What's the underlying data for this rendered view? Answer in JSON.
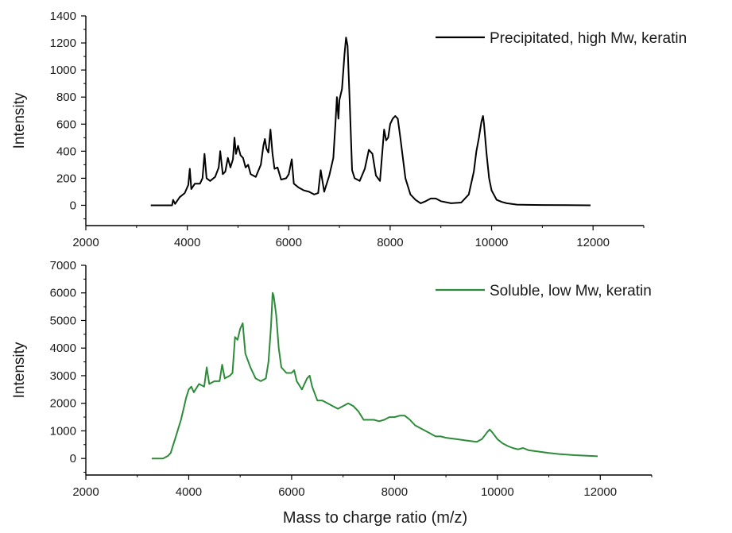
{
  "chart_data": [
    {
      "type": "line",
      "xlabel": "",
      "ylabel": "Intensity",
      "xlim": [
        2000,
        13000
      ],
      "ylim": [
        -150,
        1400
      ],
      "x_ticks": [
        2000,
        4000,
        6000,
        8000,
        10000,
        12000
      ],
      "y_ticks": [
        0,
        200,
        400,
        600,
        800,
        1000,
        1200,
        1400
      ],
      "legend_position": "top-right",
      "series": [
        {
          "name": "Precipitated, high Mw, keratin",
          "color": "#000000",
          "x": [
            3280,
            3700,
            3720,
            3760,
            3850,
            3950,
            4020,
            4050,
            4080,
            4150,
            4250,
            4300,
            4340,
            4380,
            4450,
            4550,
            4620,
            4650,
            4700,
            4750,
            4800,
            4850,
            4900,
            4930,
            4960,
            5000,
            5050,
            5100,
            5150,
            5200,
            5250,
            5350,
            5450,
            5500,
            5530,
            5560,
            5600,
            5640,
            5680,
            5720,
            5780,
            5850,
            5950,
            6000,
            6060,
            6100,
            6200,
            6300,
            6400,
            6500,
            6580,
            6630,
            6700,
            6800,
            6880,
            6920,
            6950,
            6980,
            7000,
            7050,
            7100,
            7130,
            7160,
            7200,
            7250,
            7300,
            7400,
            7500,
            7580,
            7650,
            7720,
            7800,
            7880,
            7920,
            7960,
            8000,
            8050,
            8100,
            8150,
            8200,
            8300,
            8400,
            8500,
            8600,
            8700,
            8800,
            8900,
            9000,
            9200,
            9400,
            9550,
            9650,
            9700,
            9750,
            9800,
            9830,
            9850,
            9900,
            9950,
            10000,
            10100,
            10200,
            10300,
            10400,
            10500,
            10700,
            11000,
            11500,
            11950
          ],
          "y": [
            0,
            0,
            40,
            10,
            60,
            90,
            150,
            270,
            120,
            160,
            160,
            200,
            380,
            200,
            180,
            210,
            280,
            400,
            230,
            250,
            350,
            280,
            340,
            500,
            380,
            440,
            370,
            350,
            280,
            300,
            230,
            210,
            300,
            440,
            490,
            420,
            390,
            560,
            380,
            270,
            280,
            190,
            200,
            230,
            340,
            160,
            130,
            110,
            100,
            80,
            90,
            260,
            100,
            220,
            350,
            600,
            800,
            640,
            780,
            860,
            1120,
            1240,
            1180,
            780,
            260,
            200,
            180,
            270,
            410,
            380,
            220,
            180,
            560,
            480,
            500,
            600,
            640,
            660,
            640,
            500,
            200,
            80,
            40,
            15,
            30,
            50,
            50,
            30,
            15,
            20,
            80,
            250,
            400,
            500,
            620,
            660,
            600,
            380,
            200,
            110,
            40,
            25,
            15,
            10,
            5,
            3,
            2,
            1,
            0
          ]
        }
      ]
    },
    {
      "type": "line",
      "xlabel": "Mass to charge ratio (m/z)",
      "ylabel": "Intensity",
      "xlim": [
        2000,
        13000
      ],
      "ylim": [
        -600,
        7000
      ],
      "x_ticks": [
        2000,
        4000,
        6000,
        8000,
        10000,
        12000
      ],
      "y_ticks": [
        0,
        1000,
        2000,
        3000,
        4000,
        5000,
        6000,
        7000
      ],
      "legend_position": "top-right",
      "series": [
        {
          "name": "Soluble, low Mw, keratin",
          "color": "#2e8b3a",
          "x": [
            3280,
            3500,
            3600,
            3650,
            3700,
            3750,
            3800,
            3850,
            3900,
            3950,
            4000,
            4050,
            4100,
            4200,
            4300,
            4350,
            4400,
            4500,
            4600,
            4650,
            4700,
            4800,
            4850,
            4900,
            4950,
            5000,
            5050,
            5100,
            5200,
            5300,
            5400,
            5500,
            5550,
            5600,
            5630,
            5650,
            5700,
            5750,
            5800,
            5900,
            6000,
            6050,
            6100,
            6200,
            6300,
            6350,
            6400,
            6500,
            6600,
            6700,
            6800,
            6900,
            7000,
            7100,
            7200,
            7300,
            7400,
            7500,
            7600,
            7700,
            7800,
            7900,
            8000,
            8100,
            8200,
            8300,
            8400,
            8500,
            8600,
            8700,
            8800,
            8900,
            9000,
            9200,
            9400,
            9600,
            9700,
            9800,
            9850,
            9900,
            10000,
            10100,
            10200,
            10300,
            10400,
            10500,
            10600,
            10800,
            11000,
            11200,
            11500,
            11950
          ],
          "y": [
            0,
            0,
            100,
            200,
            500,
            800,
            1100,
            1400,
            1800,
            2200,
            2500,
            2600,
            2400,
            2700,
            2600,
            3300,
            2700,
            2800,
            2800,
            3400,
            2900,
            3000,
            3100,
            4400,
            4300,
            4700,
            4900,
            3800,
            3300,
            2900,
            2800,
            2900,
            3500,
            4800,
            6000,
            5900,
            5200,
            4000,
            3300,
            3100,
            3100,
            3200,
            2800,
            2500,
            2900,
            3000,
            2600,
            2100,
            2100,
            2000,
            1900,
            1800,
            1900,
            2000,
            1900,
            1700,
            1400,
            1400,
            1400,
            1350,
            1400,
            1500,
            1500,
            1550,
            1550,
            1400,
            1200,
            1100,
            1000,
            900,
            800,
            800,
            750,
            700,
            650,
            600,
            700,
            950,
            1050,
            950,
            700,
            550,
            450,
            380,
            330,
            380,
            300,
            250,
            200,
            160,
            120,
            80
          ]
        }
      ]
    }
  ]
}
